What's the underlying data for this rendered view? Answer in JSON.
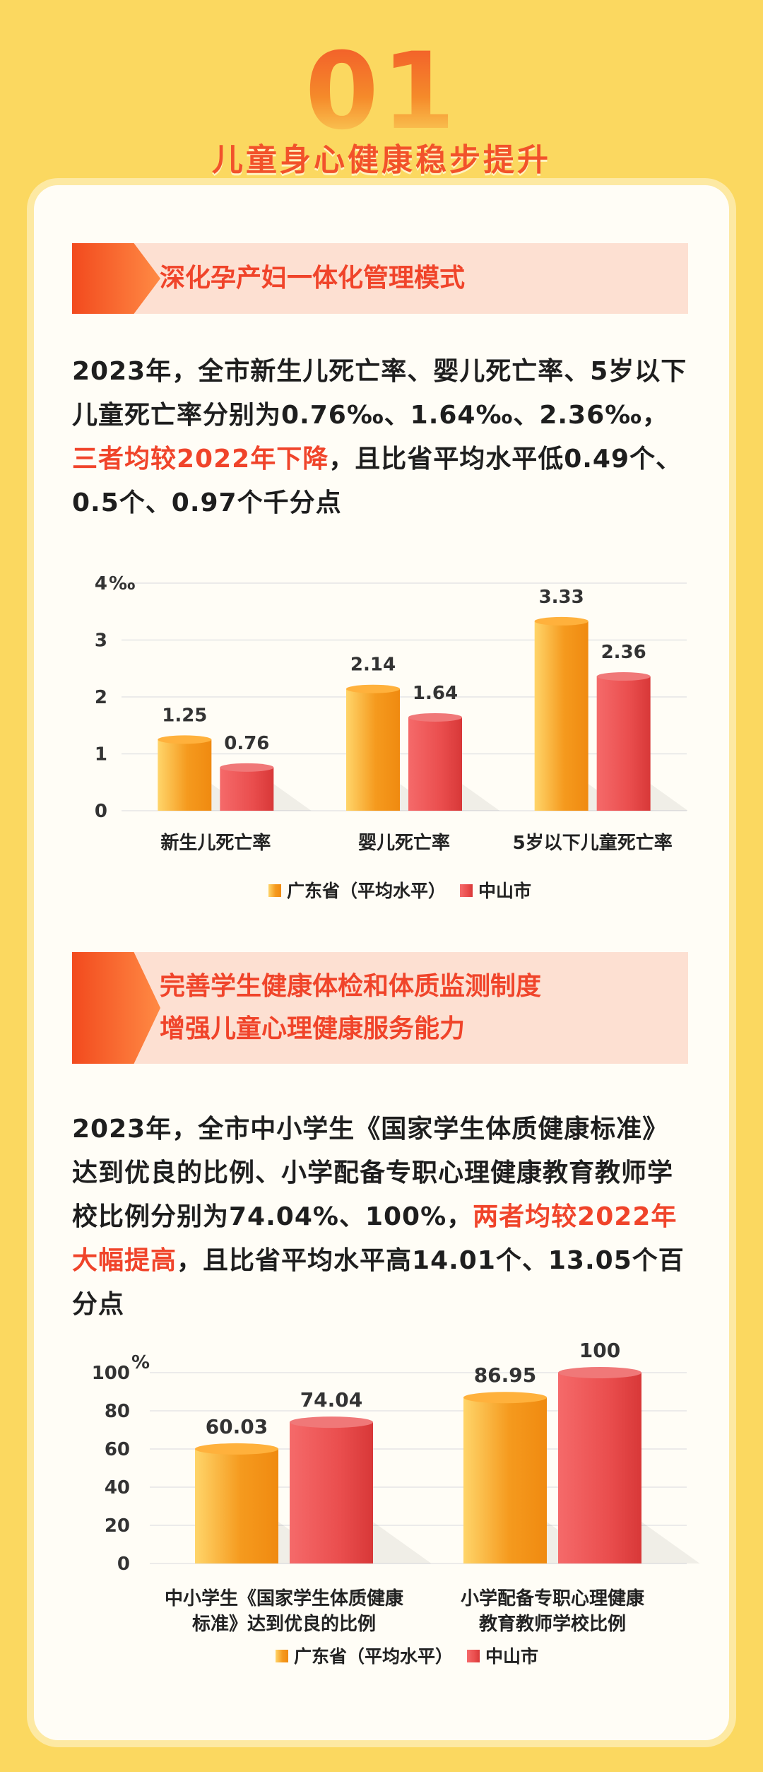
{
  "header": {
    "number": "01",
    "title": "儿童身心健康稳步提升"
  },
  "section1": {
    "heading": "深化孕产妇一体化管理模式",
    "para_part1": "2023年，全市新生儿死亡率、婴儿死亡率、5岁以下儿童死亡率分别为0.76‰、1.64‰、2.36‰，",
    "para_highlight": "三者均较2022年下降",
    "para_part2": "，且比省平均水平低0.49个、0.5个、0.97个千分点"
  },
  "section2": {
    "heading_line1": "完善学生健康体检和体质监测制度",
    "heading_line2": "增强儿童心理健康服务能力",
    "para_part1": "2023年，全市中小学生《国家学生体质健康标准》达到优良的比例、小学配备专职心理健康教育教师学校比例分别为74.04%、100%，",
    "para_highlight": "两者均较2022年大幅提高",
    "para_part2": "，且比省平均水平高14.01个、13.05个百分点"
  },
  "colors": {
    "province": "#f59a1e",
    "city": "#ea4e4e",
    "accent": "#f0442a"
  },
  "chart_data": [
    {
      "type": "bar",
      "unit": "‰",
      "categories": [
        "新生儿死亡率",
        "婴儿死亡率",
        "5岁以下儿童死亡率"
      ],
      "series": [
        {
          "name": "广东省（平均水平）",
          "values": [
            1.25,
            2.14,
            3.33
          ]
        },
        {
          "name": "中山市",
          "values": [
            0.76,
            1.64,
            2.36
          ]
        }
      ],
      "ylim": [
        0,
        4
      ],
      "yticks": [
        "0",
        "1",
        "2",
        "3",
        "4"
      ],
      "grid": true,
      "legend": "bottom"
    },
    {
      "type": "bar",
      "unit": "%",
      "categories": [
        [
          "中小学生《国家学生体质健康",
          "标准》达到优良的比例"
        ],
        [
          "小学配备专职心理健康",
          "教育教师学校比例"
        ]
      ],
      "series": [
        {
          "name": "广东省（平均水平）",
          "values": [
            60.03,
            86.95
          ]
        },
        {
          "name": "中山市",
          "values": [
            74.04,
            100
          ]
        }
      ],
      "ylim": [
        0,
        100
      ],
      "yticks": [
        "0",
        "20",
        "40",
        "60",
        "80",
        "100"
      ],
      "grid": true,
      "legend": "bottom"
    }
  ]
}
